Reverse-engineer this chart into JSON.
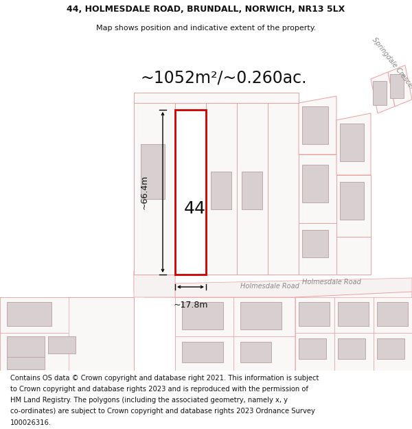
{
  "title_line1": "44, HOLMESDALE ROAD, BRUNDALL, NORWICH, NR13 5LX",
  "title_line2": "Map shows position and indicative extent of the property.",
  "footer_lines": [
    "Contains OS data © Crown copyright and database right 2021. This information is subject",
    "to Crown copyright and database rights 2023 and is reproduced with the permission of",
    "HM Land Registry. The polygons (including the associated geometry, namely x, y",
    "co-ordinates) are subject to Crown copyright and database rights 2023 Ordnance Survey",
    "100026316."
  ],
  "area_label": "~1052m²/~0.260ac.",
  "width_label": "~17.8m",
  "height_label": "~66.4m",
  "number_label": "44",
  "map_bg": "#faf7f7",
  "plot_fill": "#ffffff",
  "plot_border": "#cc0000",
  "building_fill": "#d8d0d0",
  "building_edge": "#c0a8a8",
  "poly_fill": "#faf7f7",
  "poly_edge": "#e8a0a0",
  "road_fill": "#f7f2f2",
  "road_edge": "#e8a0a0",
  "text_color": "#111111",
  "dim_color": "#111111",
  "road_text_color": "#888888",
  "title_fontsize": 9.0,
  "subtitle_fontsize": 8.0,
  "footer_fontsize": 7.2,
  "area_fontsize": 17,
  "number_fontsize": 18,
  "dim_fontsize": 9,
  "road_fontsize": 7
}
